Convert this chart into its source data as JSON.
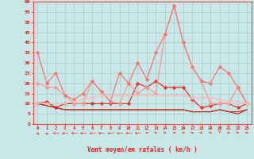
{
  "xlabel": "Vent moyen/en rafales ( km/h )",
  "hours": [
    0,
    1,
    2,
    3,
    4,
    5,
    6,
    7,
    8,
    9,
    10,
    11,
    12,
    13,
    14,
    15,
    16,
    17,
    18,
    19,
    20,
    21,
    22,
    23
  ],
  "series": [
    {
      "color": "#EE3333",
      "linewidth": 0.9,
      "marker": "D",
      "markersize": 1.8,
      "data": [
        10,
        11,
        8,
        10,
        10,
        10,
        10,
        10,
        10,
        10,
        10,
        20,
        18,
        21,
        18,
        18,
        18,
        12,
        8,
        9,
        10,
        10,
        8,
        10
      ]
    },
    {
      "color": "#CC2222",
      "linewidth": 0.8,
      "marker": null,
      "markersize": 0,
      "data": [
        10,
        9,
        8,
        7,
        7,
        7,
        7,
        7,
        7,
        7,
        7,
        7,
        7,
        7,
        7,
        7,
        7,
        6,
        6,
        6,
        7,
        6,
        6,
        7
      ]
    },
    {
      "color": "#CC2222",
      "linewidth": 0.8,
      "marker": null,
      "markersize": 0,
      "data": [
        10,
        9,
        8,
        7,
        7,
        7,
        7,
        7,
        7,
        7,
        7,
        7,
        7,
        7,
        7,
        7,
        7,
        6,
        6,
        6,
        7,
        6,
        5,
        7
      ]
    },
    {
      "color": "#FF9999",
      "linewidth": 0.9,
      "marker": "D",
      "markersize": 1.8,
      "data": [
        20,
        18,
        18,
        14,
        10,
        10,
        21,
        16,
        11,
        10,
        20,
        15,
        18,
        15,
        44,
        58,
        40,
        28,
        21,
        10,
        10,
        10,
        18,
        10
      ]
    },
    {
      "color": "#FF7777",
      "linewidth": 0.9,
      "marker": "D",
      "markersize": 1.8,
      "data": [
        35,
        20,
        25,
        14,
        12,
        15,
        21,
        16,
        11,
        25,
        20,
        30,
        22,
        35,
        44,
        58,
        40,
        28,
        21,
        20,
        28,
        25,
        18,
        10
      ]
    },
    {
      "color": "#FFBBBB",
      "linewidth": 0.9,
      "marker": "D",
      "markersize": 1.5,
      "data": [
        10,
        10,
        10,
        10,
        11,
        12,
        13,
        14,
        14,
        14,
        14,
        14,
        14,
        14,
        14,
        14,
        14,
        13,
        13,
        13,
        12,
        11,
        11,
        10
      ]
    }
  ],
  "wind_dirs": [
    225,
    225,
    270,
    270,
    270,
    270,
    270,
    270,
    270,
    270,
    270,
    270,
    315,
    45,
    45,
    315,
    315,
    45,
    45,
    45,
    0,
    45,
    45,
    45
  ],
  "ylim": [
    0,
    60
  ],
  "yticks": [
    0,
    5,
    10,
    15,
    20,
    25,
    30,
    35,
    40,
    45,
    50,
    55,
    60
  ],
  "bg_color": "#C8E8E8",
  "grid_color": "#AACCCC",
  "axis_color": "#FF4444",
  "text_color": "#EE2222",
  "arrow_color": "#EE5555"
}
